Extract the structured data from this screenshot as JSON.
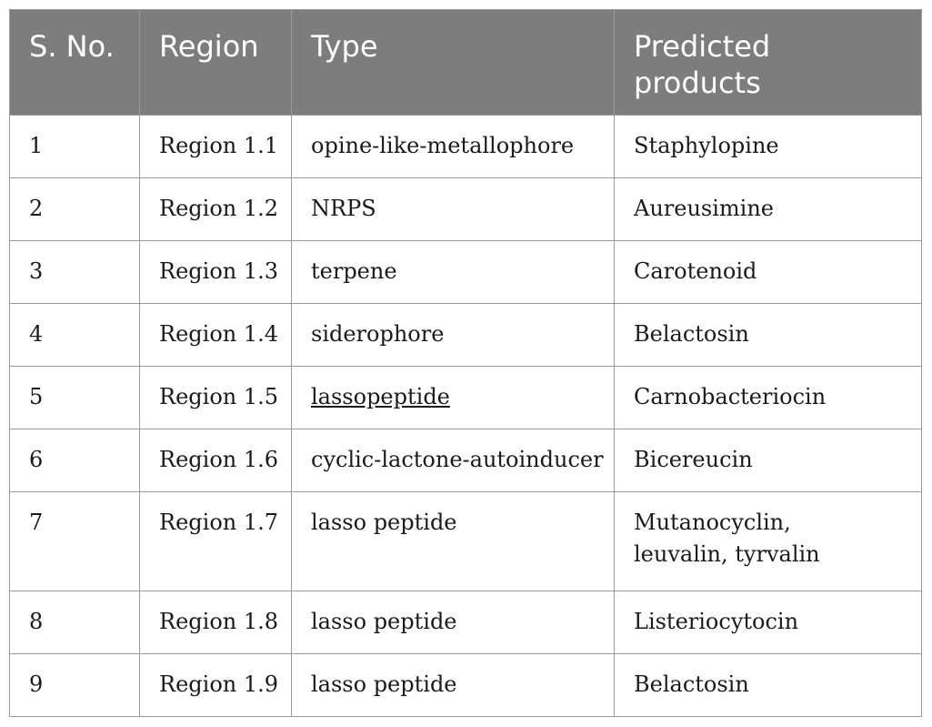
{
  "table": {
    "headers": [
      "S. No.",
      "Region",
      "Type",
      "Predicted products"
    ],
    "rows": [
      {
        "sno": "1",
        "region": "Region 1.1",
        "type": "opine-like-metallophore",
        "product": "Staphylopine"
      },
      {
        "sno": "2",
        "region": "Region 1.2",
        "type": "NRPS",
        "product": "Aureusimine"
      },
      {
        "sno": "3",
        "region": "Region 1.3",
        "type": "terpene",
        "product": "Carotenoid"
      },
      {
        "sno": "4",
        "region": "Region 1.4",
        "type": "siderophore",
        "product": "Belactosin"
      },
      {
        "sno": "5",
        "region": "Region 1.5",
        "type": "lassopeptide",
        "product": "Carnobacteriocin"
      },
      {
        "sno": "6",
        "region": "Region 1.6",
        "type": "cyclic-lactone-autoinducer",
        "product": "Bicereucin"
      },
      {
        "sno": "7",
        "region": "Region 1.7",
        "type": "lasso peptide",
        "product": "Mutanocyclin, leuvalin, tyrvalin"
      },
      {
        "sno": "8",
        "region": "Region 1.8",
        "type": "lasso peptide",
        "product": "Listeriocytocin"
      },
      {
        "sno": "9",
        "region": "Region 1.9",
        "type": "lasso peptide",
        "product": "Belactosin"
      }
    ]
  }
}
